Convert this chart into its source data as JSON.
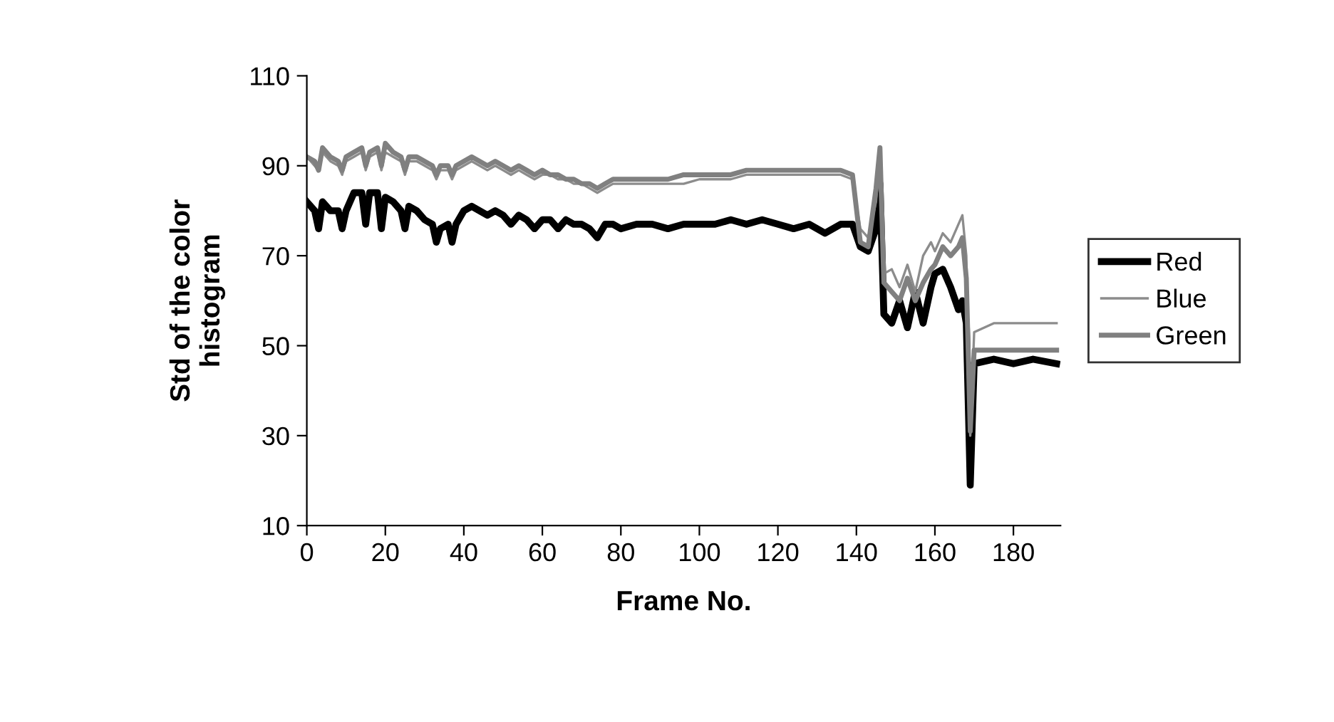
{
  "chart_data": {
    "type": "line",
    "xlabel": "Frame No.",
    "ylabel": "Std of the color\nhistogram",
    "x": [
      0,
      2,
      3,
      4,
      6,
      8,
      9,
      10,
      12,
      14,
      15,
      16,
      18,
      19,
      20,
      22,
      24,
      25,
      26,
      28,
      30,
      32,
      33,
      34,
      36,
      37,
      38,
      40,
      42,
      44,
      46,
      48,
      50,
      52,
      54,
      56,
      58,
      60,
      62,
      64,
      66,
      68,
      70,
      72,
      74,
      76,
      78,
      80,
      84,
      88,
      92,
      96,
      100,
      104,
      108,
      112,
      116,
      120,
      124,
      128,
      132,
      136,
      139,
      141,
      143,
      145,
      146,
      147,
      149,
      151,
      153,
      155,
      157,
      159,
      160,
      162,
      164,
      166,
      167,
      168,
      169,
      170,
      175,
      180,
      185,
      191
    ],
    "series": [
      {
        "name": "Red",
        "color": "#000000",
        "values": [
          82,
          80,
          76,
          82,
          80,
          80,
          76,
          80,
          84,
          84,
          77,
          84,
          84,
          76,
          83,
          82,
          80,
          76,
          81,
          80,
          78,
          77,
          73,
          76,
          77,
          73,
          77,
          80,
          81,
          80,
          79,
          80,
          79,
          77,
          79,
          78,
          76,
          78,
          78,
          76,
          78,
          77,
          77,
          76,
          74,
          77,
          77,
          76,
          77,
          77,
          76,
          77,
          77,
          77,
          78,
          77,
          78,
          77,
          76,
          77,
          75,
          77,
          77,
          72,
          71,
          76,
          86,
          57,
          55,
          60,
          54,
          62,
          55,
          63,
          66,
          67,
          63,
          58,
          60,
          55,
          19,
          46,
          47,
          46,
          47,
          46
        ]
      },
      {
        "name": "Blue",
        "color": "#8c8c8c",
        "values": [
          92,
          90,
          89,
          93,
          91,
          90,
          88,
          91,
          92,
          93,
          89,
          92,
          93,
          89,
          93,
          92,
          91,
          88,
          91,
          91,
          90,
          89,
          87,
          89,
          89,
          87,
          89,
          90,
          91,
          90,
          89,
          90,
          89,
          88,
          89,
          88,
          87,
          88,
          88,
          87,
          87,
          86,
          86,
          85,
          84,
          85,
          86,
          86,
          86,
          86,
          86,
          86,
          87,
          87,
          87,
          88,
          88,
          88,
          88,
          88,
          88,
          88,
          87,
          76,
          74,
          82,
          92,
          66,
          67,
          63,
          68,
          62,
          70,
          73,
          71,
          75,
          73,
          77,
          79,
          70,
          30,
          53,
          55,
          55,
          55,
          55
        ]
      },
      {
        "name": "Green",
        "color": "#808080",
        "values": [
          92,
          91,
          89,
          94,
          92,
          91,
          89,
          92,
          93,
          94,
          90,
          93,
          94,
          90,
          95,
          93,
          92,
          89,
          92,
          92,
          91,
          90,
          88,
          90,
          90,
          88,
          90,
          91,
          92,
          91,
          90,
          91,
          90,
          89,
          90,
          89,
          88,
          89,
          88,
          88,
          87,
          87,
          86,
          86,
          85,
          86,
          87,
          87,
          87,
          87,
          87,
          88,
          88,
          88,
          88,
          89,
          89,
          89,
          89,
          89,
          89,
          89,
          88,
          73,
          72,
          85,
          94,
          64,
          62,
          60,
          65,
          60,
          64,
          67,
          68,
          72,
          70,
          72,
          74,
          65,
          31,
          49,
          49,
          49,
          49,
          49
        ]
      }
    ],
    "xlim": [
      0,
      192
    ],
    "xticks": [
      0,
      20,
      40,
      60,
      80,
      100,
      120,
      140,
      160,
      180
    ],
    "ylim": [
      10,
      110
    ],
    "yticks": [
      10,
      30,
      50,
      70,
      90,
      110
    ],
    "grid": false,
    "legend": "right",
    "marker": "none",
    "line_style": "solid"
  }
}
